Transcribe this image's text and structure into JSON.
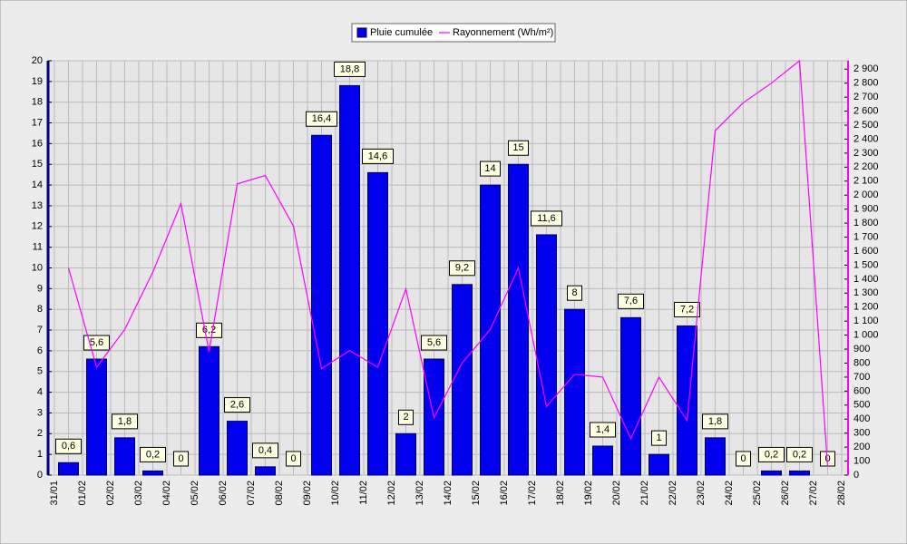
{
  "chart_data": {
    "type": "bar",
    "categories": [
      "31/01",
      "01/02",
      "02/02",
      "03/02",
      "04/02",
      "05/02",
      "06/02",
      "07/02",
      "08/02",
      "09/02",
      "10/02",
      "11/02",
      "12/02",
      "13/02",
      "14/02",
      "15/02",
      "16/02",
      "17/02",
      "18/02",
      "19/02",
      "20/02",
      "21/02",
      "22/02",
      "23/02",
      "24/02",
      "25/02",
      "26/02",
      "27/02",
      "28/02"
    ],
    "series": [
      {
        "name": "Pluie cumulée",
        "color": "#0000ee",
        "values": [
          null,
          0.6,
          5.6,
          1.8,
          0.2,
          0,
          6.2,
          2.6,
          0.4,
          0,
          16.4,
          18.8,
          14.6,
          2,
          5.6,
          9.2,
          14,
          15,
          11.6,
          8,
          1.4,
          7.6,
          1,
          7.2,
          1.8,
          0,
          0.2,
          0.2,
          0
        ],
        "value_labels": [
          null,
          "0,6",
          "5,6",
          "1,8",
          "0,2",
          "0",
          "6,2",
          "2,6",
          "0,4",
          "0",
          "16,4",
          "18,8",
          "14,6",
          "2",
          "5,6",
          "9,2",
          "14",
          "15",
          "11,6",
          "8",
          "1,4",
          "7,6",
          "1",
          "7,2",
          "1,8",
          "0",
          "0,2",
          "0,2",
          "0"
        ]
      },
      {
        "name": "Rayonnement (Wh/m²)",
        "color": "#ff00ff",
        "type": "line",
        "axis": "y2",
        "values": [
          null,
          1480,
          770,
          1040,
          1450,
          1940,
          880,
          2080,
          2140,
          1780,
          760,
          890,
          770,
          1330,
          410,
          800,
          1040,
          1480,
          490,
          720,
          700,
          260,
          700,
          390,
          2460,
          2660,
          2800,
          2960,
          60
        ]
      }
    ],
    "ylim": [
      0,
      20
    ],
    "yticks": [
      0,
      1,
      2,
      3,
      4,
      5,
      6,
      7,
      8,
      9,
      10,
      11,
      12,
      13,
      14,
      15,
      16,
      17,
      18,
      19,
      20
    ],
    "y2lim": [
      0,
      2960
    ],
    "y2ticks": [
      0,
      100,
      200,
      300,
      400,
      500,
      600,
      700,
      800,
      900,
      {
        "value": 1000,
        "label": "1 000"
      },
      {
        "value": 1100,
        "label": "1 100"
      },
      {
        "value": 1200,
        "label": "1 200"
      },
      {
        "value": 1300,
        "label": "1 300"
      },
      {
        "value": 1400,
        "label": "1 400"
      },
      {
        "value": 1500,
        "label": "1 500"
      },
      {
        "value": 1600,
        "label": "1 600"
      },
      {
        "value": 1700,
        "label": "1 700"
      },
      {
        "value": 1800,
        "label": "1 800"
      },
      {
        "value": 1900,
        "label": "1 900"
      },
      {
        "value": 2000,
        "label": "2 000"
      },
      {
        "value": 2100,
        "label": "2 100"
      },
      {
        "value": 2200,
        "label": "2 200"
      },
      {
        "value": 2300,
        "label": "2 300"
      },
      {
        "value": 2400,
        "label": "2 400"
      },
      {
        "value": 2500,
        "label": "2 500"
      },
      {
        "value": 2600,
        "label": "2 600"
      },
      {
        "value": 2700,
        "label": "2 700"
      },
      {
        "value": 2800,
        "label": "2 800"
      },
      {
        "value": 2900,
        "label": "2 900"
      }
    ],
    "grid": true,
    "legend": "top"
  }
}
